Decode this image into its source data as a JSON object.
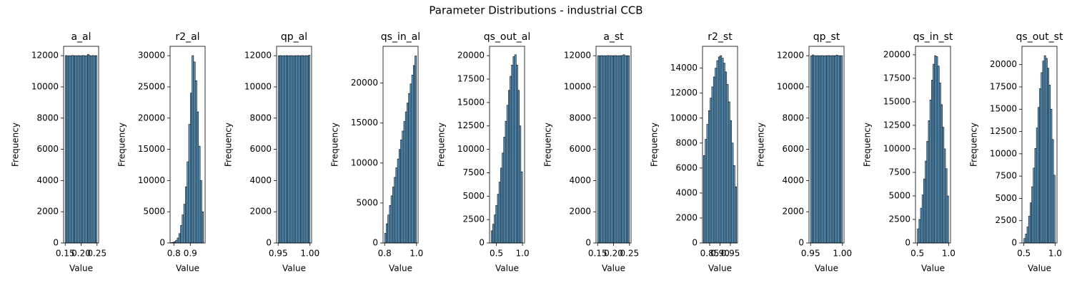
{
  "title": "Parameter Distributions - industrial CCB",
  "chart_data": [
    {
      "type": "histogram",
      "title": "a_al",
      "xlabel": "Value",
      "ylabel": "Frequency",
      "color": "#1f77b4",
      "bins": [
        0.15,
        0.155,
        0.16,
        0.165,
        0.17,
        0.175,
        0.18,
        0.185,
        0.19,
        0.195,
        0.2,
        0.205,
        0.21,
        0.215,
        0.22,
        0.225,
        0.23,
        0.235,
        0.24,
        0.245,
        0.25
      ],
      "values": [
        12010,
        11985,
        12002,
        11990,
        12015,
        11998,
        12005,
        11992,
        12008,
        11996,
        12001,
        12012,
        11989,
        12003,
        12080,
        12006,
        11994,
        12010,
        11999,
        12004
      ],
      "xlim": [
        0.145,
        0.255
      ],
      "ylim": [
        0,
        12600
      ],
      "xticks": [
        {
          "value": 0.15,
          "label": "0.15"
        },
        {
          "value": 0.2,
          "label": "0.20"
        },
        {
          "value": 0.25,
          "label": "0.25"
        }
      ],
      "yticks": [
        0,
        2000,
        4000,
        6000,
        8000,
        10000,
        12000
      ]
    },
    {
      "type": "histogram",
      "title": "r2_al",
      "xlabel": "Value",
      "ylabel": "Frequency",
      "color": "#1f77b4",
      "bins": [
        0.78,
        0.79,
        0.8,
        0.81,
        0.82,
        0.83,
        0.84,
        0.85,
        0.86,
        0.87,
        0.88,
        0.89,
        0.9,
        0.91,
        0.92,
        0.93,
        0.94,
        0.95,
        0.96,
        0.97,
        0.98
      ],
      "values": [
        50,
        100,
        200,
        400,
        800,
        1500,
        2800,
        4500,
        6200,
        9000,
        13000,
        19000,
        24000,
        30000,
        29000,
        26000,
        21000,
        15500,
        10000,
        5000
      ],
      "xlim": [
        0.777,
        0.99
      ],
      "ylim": [
        0,
        31500
      ],
      "xticks": [
        0.8,
        0.9
      ],
      "yticks": [
        0,
        5000,
        10000,
        15000,
        20000,
        25000,
        30000
      ]
    },
    {
      "type": "histogram",
      "title": "qp_al",
      "xlabel": "Value",
      "ylabel": "Frequency",
      "color": "#1f77b4",
      "bins": [
        0.95,
        0.9525,
        0.955,
        0.9575,
        0.96,
        0.9625,
        0.965,
        0.9675,
        0.97,
        0.9725,
        0.975,
        0.9775,
        0.98,
        0.9825,
        0.985,
        0.9875,
        0.99,
        0.9925,
        0.995,
        0.9975,
        1.0
      ],
      "values": [
        11995,
        12008,
        11990,
        12004,
        11997,
        12011,
        11993,
        12002,
        12006,
        11988,
        12003,
        11999,
        12009,
        11994,
        12001,
        12007,
        11992,
        12005,
        11998,
        12030
      ],
      "xlim": [
        0.9475,
        1.0025
      ],
      "ylim": [
        0,
        12600
      ],
      "xticks": [
        {
          "value": 0.95,
          "label": "0.95"
        },
        {
          "value": 1.0,
          "label": "1.00"
        }
      ],
      "yticks": [
        0,
        2000,
        4000,
        6000,
        8000,
        10000,
        12000
      ]
    },
    {
      "type": "histogram",
      "title": "qs_in_al",
      "xlabel": "Value",
      "ylabel": "Frequency",
      "color": "#1f77b4",
      "bins": [
        0.8,
        0.81,
        0.82,
        0.83,
        0.84,
        0.85,
        0.86,
        0.87,
        0.88,
        0.89,
        0.9,
        0.91,
        0.92,
        0.93,
        0.94,
        0.95,
        0.96,
        0.97,
        0.98,
        0.99,
        1.0
      ],
      "values": [
        1200,
        2400,
        3500,
        4700,
        5900,
        7000,
        8200,
        9400,
        10500,
        11700,
        12900,
        14000,
        15200,
        16400,
        17500,
        18700,
        19900,
        21000,
        22200,
        23400
      ],
      "xlim": [
        0.79,
        1.01
      ],
      "ylim": [
        0,
        24600
      ],
      "xticks": [
        0.8,
        {
          "value": 1.0,
          "label": "1.0"
        }
      ],
      "yticks": [
        0,
        5000,
        10000,
        15000,
        20000
      ]
    },
    {
      "type": "histogram",
      "title": "qs_out_al",
      "xlabel": "Value",
      "ylabel": "Frequency",
      "color": "#1f77b4",
      "bins": [
        0.4,
        0.43,
        0.46,
        0.49,
        0.52,
        0.55,
        0.58,
        0.61,
        0.64,
        0.67,
        0.7,
        0.73,
        0.76,
        0.79,
        0.82,
        0.85,
        0.88,
        0.91,
        0.94,
        0.97,
        1.0
      ],
      "values": [
        1300,
        2000,
        3000,
        4000,
        5200,
        6500,
        8000,
        9600,
        11300,
        13000,
        14700,
        16300,
        17800,
        19000,
        19900,
        20100,
        19000,
        16300,
        12500,
        7600
      ],
      "xlim": [
        0.37,
        1.04
      ],
      "ylim": [
        0,
        21000
      ],
      "xticks": [
        0.5,
        {
          "value": 1.0,
          "label": "1.0"
        }
      ],
      "yticks": [
        0,
        2500,
        5000,
        7500,
        10000,
        12500,
        15000,
        17500,
        20000
      ]
    },
    {
      "type": "histogram",
      "title": "a_st",
      "xlabel": "Value",
      "ylabel": "Frequency",
      "color": "#1f77b4",
      "bins": [
        0.15,
        0.155,
        0.16,
        0.165,
        0.17,
        0.175,
        0.18,
        0.185,
        0.19,
        0.195,
        0.2,
        0.205,
        0.21,
        0.215,
        0.22,
        0.225,
        0.23,
        0.235,
        0.24,
        0.245,
        0.25
      ],
      "values": [
        12004,
        11992,
        12009,
        11996,
        12001,
        11987,
        12013,
        11999,
        12006,
        11994,
        12002,
        12008,
        11991,
        12005,
        12000,
        12010,
        12060,
        11997,
        12003,
        11995
      ],
      "xlim": [
        0.145,
        0.255
      ],
      "ylim": [
        0,
        12600
      ],
      "xticks": [
        {
          "value": 0.15,
          "label": "0.15"
        },
        {
          "value": 0.2,
          "label": "0.20"
        },
        {
          "value": 0.25,
          "label": "0.25"
        }
      ],
      "yticks": [
        0,
        2000,
        4000,
        6000,
        8000,
        10000,
        12000
      ]
    },
    {
      "type": "histogram",
      "title": "r2_st",
      "xlabel": "Value",
      "ylabel": "Frequency",
      "color": "#1f77b4",
      "bins": [
        0.82,
        0.828,
        0.836,
        0.844,
        0.852,
        0.86,
        0.868,
        0.876,
        0.884,
        0.892,
        0.9,
        0.908,
        0.916,
        0.924,
        0.932,
        0.94,
        0.948,
        0.956,
        0.964,
        0.972,
        0.98
      ],
      "values": [
        7000,
        8300,
        9500,
        10600,
        11600,
        12500,
        13300,
        14000,
        14600,
        14900,
        15000,
        14800,
        14400,
        13700,
        12700,
        11300,
        9800,
        8000,
        6200,
        4500
      ],
      "xlim": [
        0.8155,
        0.9845
      ],
      "ylim": [
        0,
        15750
      ],
      "xticks": [
        {
          "value": 0.85,
          "label": "0.85"
        },
        {
          "value": 0.9,
          "label": "0.90"
        },
        {
          "value": 0.95,
          "label": "0.95"
        }
      ],
      "yticks": [
        0,
        2000,
        4000,
        6000,
        8000,
        10000,
        12000,
        14000
      ]
    },
    {
      "type": "histogram",
      "title": "qp_st",
      "xlabel": "Value",
      "ylabel": "Frequency",
      "color": "#1f77b4",
      "bins": [
        0.95,
        0.9525,
        0.955,
        0.9575,
        0.96,
        0.9625,
        0.965,
        0.9675,
        0.97,
        0.9725,
        0.975,
        0.9775,
        0.98,
        0.9825,
        0.985,
        0.9875,
        0.99,
        0.9925,
        0.995,
        0.9975,
        1.0
      ],
      "values": [
        11990,
        12050,
        12003,
        11996,
        12008,
        11993,
        12001,
        12006,
        11989,
        12004,
        11998,
        12010,
        11995,
        12002,
        12007,
        11992,
        12040,
        12005,
        11997,
        12001
      ],
      "xlim": [
        0.9475,
        1.0025
      ],
      "ylim": [
        0,
        12600
      ],
      "xticks": [
        {
          "value": 0.95,
          "label": "0.95"
        },
        {
          "value": 1.0,
          "label": "1.00"
        }
      ],
      "yticks": [
        0,
        2000,
        4000,
        6000,
        8000,
        10000,
        12000
      ]
    },
    {
      "type": "histogram",
      "title": "qs_in_st",
      "xlabel": "Value",
      "ylabel": "Frequency",
      "color": "#1f77b4",
      "bins": [
        0.5,
        0.525,
        0.55,
        0.575,
        0.6,
        0.625,
        0.65,
        0.675,
        0.7,
        0.725,
        0.75,
        0.775,
        0.8,
        0.825,
        0.85,
        0.875,
        0.9,
        0.925,
        0.95,
        0.975,
        1.0
      ],
      "values": [
        1500,
        2500,
        3700,
        5100,
        6800,
        8700,
        10800,
        13000,
        15200,
        17300,
        19000,
        19900,
        19800,
        18800,
        17000,
        14700,
        12300,
        10000,
        7900,
        5000
      ],
      "xlim": [
        0.47,
        1.03
      ],
      "ylim": [
        0,
        20900
      ],
      "xticks": [
        0.5,
        {
          "value": 1.0,
          "label": "1.0"
        }
      ],
      "yticks": [
        0,
        2500,
        5000,
        7500,
        10000,
        12500,
        15000,
        17500,
        20000
      ]
    },
    {
      "type": "histogram",
      "title": "qs_out_st",
      "xlabel": "Value",
      "ylabel": "Frequency",
      "color": "#1f77b4",
      "bins": [
        0.5,
        0.525,
        0.55,
        0.575,
        0.6,
        0.625,
        0.65,
        0.675,
        0.7,
        0.725,
        0.75,
        0.775,
        0.8,
        0.825,
        0.85,
        0.875,
        0.9,
        0.925,
        0.95,
        0.975,
        1.0
      ],
      "values": [
        500,
        1000,
        1800,
        3000,
        4500,
        6300,
        8400,
        10600,
        12900,
        15200,
        17300,
        19100,
        20400,
        21000,
        20700,
        19600,
        17700,
        15000,
        11600,
        7600
      ],
      "xlim": [
        0.47,
        1.03
      ],
      "ylim": [
        0,
        22050
      ],
      "xticks": [
        0.5,
        {
          "value": 1.0,
          "label": "1.0"
        }
      ],
      "yticks": [
        0,
        2500,
        5000,
        7500,
        10000,
        12500,
        15000,
        17500,
        20000
      ]
    }
  ]
}
